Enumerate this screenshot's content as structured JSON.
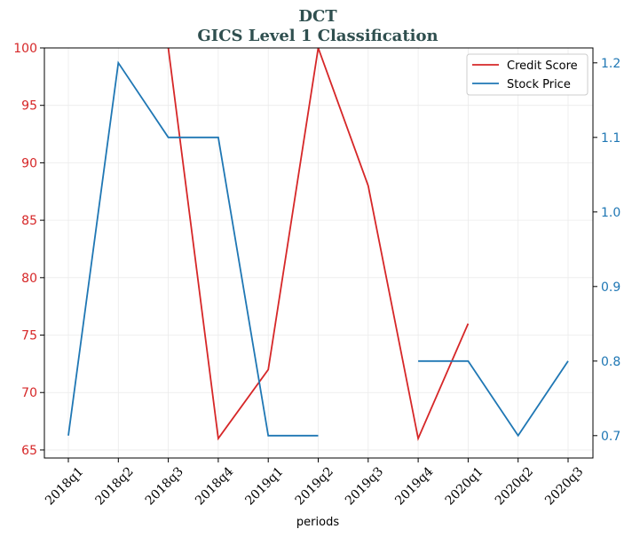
{
  "chart_data": {
    "type": "line",
    "title": "DCT",
    "subtitle": "GICS Level 1 Classification",
    "xlabel": "periods",
    "ylabel_left": "",
    "ylabel_right": "",
    "categories": [
      "2018q1",
      "2018q2",
      "2018q3",
      "2018q4",
      "2019q1",
      "2019q2",
      "2019q3",
      "2019q4",
      "2020q1",
      "2020q2",
      "2020q3"
    ],
    "left_axis": {
      "ylim": [
        64.3,
        100
      ],
      "ticks": [
        65,
        70,
        75,
        80,
        85,
        90,
        95,
        100
      ],
      "color": "#d62728"
    },
    "right_axis": {
      "ylim": [
        0.67,
        1.22
      ],
      "ticks": [
        0.7,
        0.8,
        0.9,
        1.0,
        1.1,
        1.2
      ],
      "color": "#1f77b4"
    },
    "grid": true,
    "legend_position": "top-right",
    "series": [
      {
        "name": "Credit Score",
        "axis": "left",
        "color": "#d62728",
        "values": [
          null,
          null,
          100,
          66,
          72,
          100,
          88,
          66,
          76,
          null,
          null
        ]
      },
      {
        "name": "Stock Price",
        "axis": "right",
        "color": "#1f77b4",
        "values": [
          0.7,
          1.2,
          1.1,
          1.1,
          0.7,
          0.7,
          null,
          0.8,
          0.8,
          0.7,
          0.8
        ]
      }
    ]
  }
}
